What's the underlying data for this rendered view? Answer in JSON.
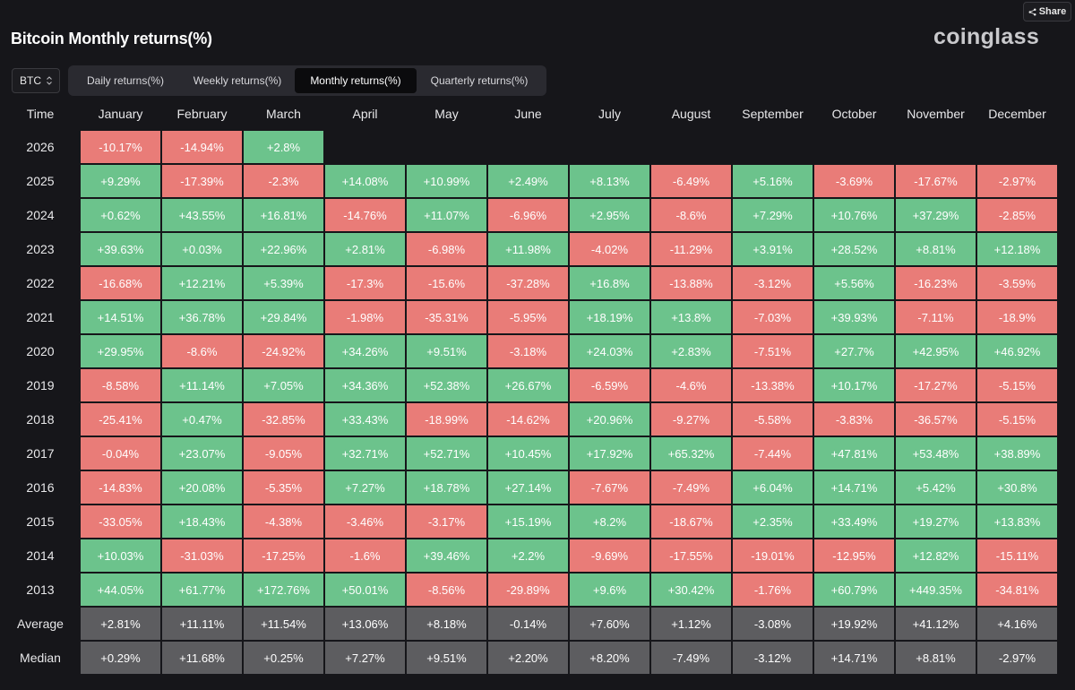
{
  "header": {
    "title": "Bitcoin Monthly returns(%)",
    "logo": "coinglass",
    "share_label": "Share"
  },
  "controls": {
    "asset": "BTC",
    "tabs": [
      "Daily returns(%)",
      "Weekly returns(%)",
      "Monthly returns(%)",
      "Quarterly returns(%)"
    ],
    "active_tab": 2
  },
  "colors": {
    "positive": "#6cc38c",
    "negative": "#e97c78",
    "summary": "#5d5d60",
    "background": "#16161a"
  },
  "chart_data": {
    "type": "heatmap",
    "title": "Bitcoin Monthly returns(%)",
    "row_header": "Time",
    "columns": [
      "January",
      "February",
      "March",
      "April",
      "May",
      "June",
      "July",
      "August",
      "September",
      "October",
      "November",
      "December"
    ],
    "rows": [
      {
        "label": "2026",
        "values": [
          "-10.17%",
          "-14.94%",
          "+2.8%",
          "",
          "",
          "",
          "",
          "",
          "",
          "",
          "",
          ""
        ]
      },
      {
        "label": "2025",
        "values": [
          "+9.29%",
          "-17.39%",
          "-2.3%",
          "+14.08%",
          "+10.99%",
          "+2.49%",
          "+8.13%",
          "-6.49%",
          "+5.16%",
          "-3.69%",
          "-17.67%",
          "-2.97%"
        ]
      },
      {
        "label": "2024",
        "values": [
          "+0.62%",
          "+43.55%",
          "+16.81%",
          "-14.76%",
          "+11.07%",
          "-6.96%",
          "+2.95%",
          "-8.6%",
          "+7.29%",
          "+10.76%",
          "+37.29%",
          "-2.85%"
        ]
      },
      {
        "label": "2023",
        "values": [
          "+39.63%",
          "+0.03%",
          "+22.96%",
          "+2.81%",
          "-6.98%",
          "+11.98%",
          "-4.02%",
          "-11.29%",
          "+3.91%",
          "+28.52%",
          "+8.81%",
          "+12.18%"
        ]
      },
      {
        "label": "2022",
        "values": [
          "-16.68%",
          "+12.21%",
          "+5.39%",
          "-17.3%",
          "-15.6%",
          "-37.28%",
          "+16.8%",
          "-13.88%",
          "-3.12%",
          "+5.56%",
          "-16.23%",
          "-3.59%"
        ]
      },
      {
        "label": "2021",
        "values": [
          "+14.51%",
          "+36.78%",
          "+29.84%",
          "-1.98%",
          "-35.31%",
          "-5.95%",
          "+18.19%",
          "+13.8%",
          "-7.03%",
          "+39.93%",
          "-7.11%",
          "-18.9%"
        ]
      },
      {
        "label": "2020",
        "values": [
          "+29.95%",
          "-8.6%",
          "-24.92%",
          "+34.26%",
          "+9.51%",
          "-3.18%",
          "+24.03%",
          "+2.83%",
          "-7.51%",
          "+27.7%",
          "+42.95%",
          "+46.92%"
        ]
      },
      {
        "label": "2019",
        "values": [
          "-8.58%",
          "+11.14%",
          "+7.05%",
          "+34.36%",
          "+52.38%",
          "+26.67%",
          "-6.59%",
          "-4.6%",
          "-13.38%",
          "+10.17%",
          "-17.27%",
          "-5.15%"
        ]
      },
      {
        "label": "2018",
        "values": [
          "-25.41%",
          "+0.47%",
          "-32.85%",
          "+33.43%",
          "-18.99%",
          "-14.62%",
          "+20.96%",
          "-9.27%",
          "-5.58%",
          "-3.83%",
          "-36.57%",
          "-5.15%"
        ]
      },
      {
        "label": "2017",
        "values": [
          "-0.04%",
          "+23.07%",
          "-9.05%",
          "+32.71%",
          "+52.71%",
          "+10.45%",
          "+17.92%",
          "+65.32%",
          "-7.44%",
          "+47.81%",
          "+53.48%",
          "+38.89%"
        ]
      },
      {
        "label": "2016",
        "values": [
          "-14.83%",
          "+20.08%",
          "-5.35%",
          "+7.27%",
          "+18.78%",
          "+27.14%",
          "-7.67%",
          "-7.49%",
          "+6.04%",
          "+14.71%",
          "+5.42%",
          "+30.8%"
        ]
      },
      {
        "label": "2015",
        "values": [
          "-33.05%",
          "+18.43%",
          "-4.38%",
          "-3.46%",
          "-3.17%",
          "+15.19%",
          "+8.2%",
          "-18.67%",
          "+2.35%",
          "+33.49%",
          "+19.27%",
          "+13.83%"
        ]
      },
      {
        "label": "2014",
        "values": [
          "+10.03%",
          "-31.03%",
          "-17.25%",
          "-1.6%",
          "+39.46%",
          "+2.2%",
          "-9.69%",
          "-17.55%",
          "-19.01%",
          "-12.95%",
          "+12.82%",
          "-15.11%"
        ]
      },
      {
        "label": "2013",
        "values": [
          "+44.05%",
          "+61.77%",
          "+172.76%",
          "+50.01%",
          "-8.56%",
          "-29.89%",
          "+9.6%",
          "+30.42%",
          "-1.76%",
          "+60.79%",
          "+449.35%",
          "-34.81%"
        ]
      }
    ],
    "summary_rows": [
      {
        "label": "Average",
        "values": [
          "+2.81%",
          "+11.11%",
          "+11.54%",
          "+13.06%",
          "+8.18%",
          "-0.14%",
          "+7.60%",
          "+1.12%",
          "-3.08%",
          "+19.92%",
          "+41.12%",
          "+4.16%"
        ]
      },
      {
        "label": "Median",
        "values": [
          "+0.29%",
          "+11.68%",
          "+0.25%",
          "+7.27%",
          "+9.51%",
          "+2.20%",
          "+8.20%",
          "-7.49%",
          "-3.12%",
          "+14.71%",
          "+8.81%",
          "-2.97%"
        ]
      }
    ]
  }
}
